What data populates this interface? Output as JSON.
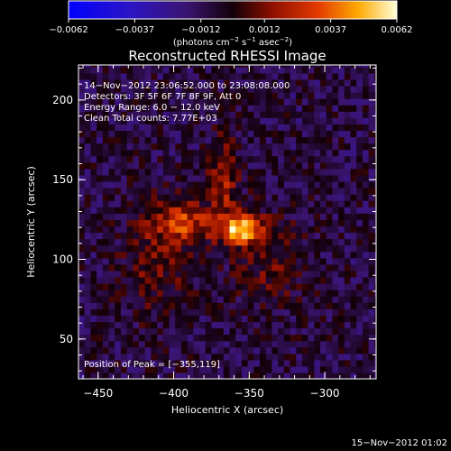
{
  "chart_data": {
    "type": "heatmap",
    "title": "Reconstructed RHESSI Image",
    "xlabel": "Heliocentric X (arcsec)",
    "ylabel": "Heliocentric Y (arcsec)",
    "xlim": [
      -463,
      -266
    ],
    "ylim": [
      25,
      222
    ],
    "xticks": [
      -450,
      -400,
      -350,
      -300
    ],
    "xtick_labels": [
      "−450",
      "−400",
      "−350",
      "−300"
    ],
    "yticks": [
      50,
      100,
      150,
      200
    ],
    "ytick_labels": [
      "50",
      "100",
      "150",
      "200"
    ],
    "colorbar": {
      "ticks": [
        -0.0062,
        -0.0037,
        -0.0012,
        0.0012,
        0.0037,
        0.0062
      ],
      "tick_labels": [
        "−0.0062",
        "−0.0037",
        "−0.0012",
        "0.0012",
        "0.0037",
        "0.0062"
      ],
      "range": [
        -0.0062,
        0.0062
      ],
      "unit_text": "(photons cm",
      "unit_exp1": "−2",
      "unit_mid": " s",
      "unit_exp2": "−1",
      "unit_mid2": " asec",
      "unit_exp3": "−2",
      "unit_close": ")"
    },
    "annotations": {
      "time_range": "14−Nov−2012 23:06:52.000 to 23:08:08.000",
      "detectors": "Detectors: 3F 5F 6F 7F 8F 9F, Att 0",
      "energy": "Energy Range: 6.0 − 12.0 keV",
      "clean": "Clean    Total counts: 7.77E+03",
      "peak": "Position of Peak = [−355,119]"
    },
    "peak": {
      "x": -355,
      "y": 119
    },
    "sources": [
      {
        "x": -355,
        "y": 119,
        "sx": 9,
        "sy": 6,
        "amp": 0.0062
      },
      {
        "x": -392,
        "y": 123,
        "sx": 14,
        "sy": 9,
        "amp": 0.0033
      },
      {
        "x": -367,
        "y": 150,
        "sx": 7,
        "sy": 18,
        "amp": 0.0026
      },
      {
        "x": -412,
        "y": 100,
        "sx": 16,
        "sy": 26,
        "amp": 0.0016
      },
      {
        "x": -338,
        "y": 100,
        "sx": 18,
        "sy": 22,
        "amp": 0.0014
      }
    ],
    "grid": false,
    "colormap": "blue-purple-red-yellow-white"
  },
  "footer": {
    "date_stamp": "15−Nov−2012 01:02"
  }
}
